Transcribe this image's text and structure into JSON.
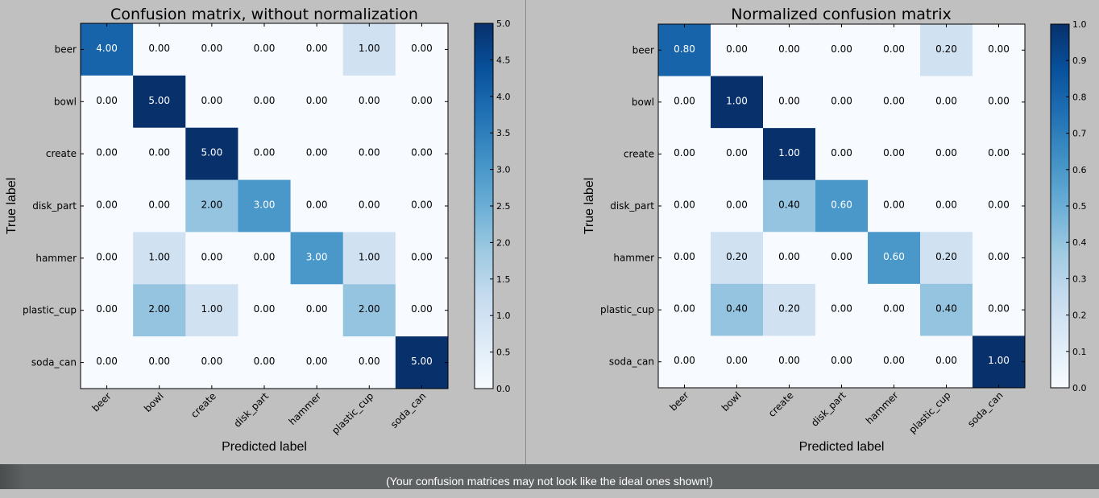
{
  "caption": "(Your confusion matrices may not look like the ideal ones shown!)",
  "colormap": {
    "low": "#f7fbff",
    "high": "#08306b"
  },
  "chart_data": [
    {
      "type": "heatmap",
      "title": "Confusion matrix, without normalization",
      "xlabel": "Predicted label",
      "ylabel": "True label",
      "x_categories": [
        "beer",
        "bowl",
        "create",
        "disk_part",
        "hammer",
        "plastic_cup",
        "soda_can"
      ],
      "y_categories": [
        "beer",
        "bowl",
        "create",
        "disk_part",
        "hammer",
        "plastic_cup",
        "soda_can"
      ],
      "values": [
        [
          4,
          0,
          0,
          0,
          0,
          1,
          0
        ],
        [
          0,
          5,
          0,
          0,
          0,
          0,
          0
        ],
        [
          0,
          0,
          5,
          0,
          0,
          0,
          0
        ],
        [
          0,
          0,
          2,
          3,
          0,
          0,
          0
        ],
        [
          0,
          1,
          0,
          0,
          3,
          1,
          0
        ],
        [
          0,
          2,
          1,
          0,
          0,
          2,
          0
        ],
        [
          0,
          0,
          0,
          0,
          0,
          0,
          5
        ]
      ],
      "cell_labels": [
        [
          "4.00",
          "0.00",
          "0.00",
          "0.00",
          "0.00",
          "1.00",
          "0.00"
        ],
        [
          "0.00",
          "5.00",
          "0.00",
          "0.00",
          "0.00",
          "0.00",
          "0.00"
        ],
        [
          "0.00",
          "0.00",
          "5.00",
          "0.00",
          "0.00",
          "0.00",
          "0.00"
        ],
        [
          "0.00",
          "0.00",
          "2.00",
          "3.00",
          "0.00",
          "0.00",
          "0.00"
        ],
        [
          "0.00",
          "1.00",
          "0.00",
          "0.00",
          "3.00",
          "1.00",
          "0.00"
        ],
        [
          "0.00",
          "2.00",
          "1.00",
          "0.00",
          "0.00",
          "2.00",
          "0.00"
        ],
        [
          "0.00",
          "0.00",
          "0.00",
          "0.00",
          "0.00",
          "0.00",
          "5.00"
        ]
      ],
      "value_range": [
        0,
        5
      ],
      "colorbar_ticks": [
        "0.0",
        "0.5",
        "1.0",
        "1.5",
        "2.0",
        "2.5",
        "3.0",
        "3.5",
        "4.0",
        "4.5",
        "5.0"
      ]
    },
    {
      "type": "heatmap",
      "title": "Normalized confusion matrix",
      "xlabel": "Predicted label",
      "ylabel": "True label",
      "x_categories": [
        "beer",
        "bowl",
        "create",
        "disk_part",
        "hammer",
        "plastic_cup",
        "soda_can"
      ],
      "y_categories": [
        "beer",
        "bowl",
        "create",
        "disk_part",
        "hammer",
        "plastic_cup",
        "soda_can"
      ],
      "values": [
        [
          0.8,
          0,
          0,
          0,
          0,
          0.2,
          0
        ],
        [
          0,
          1,
          0,
          0,
          0,
          0,
          0
        ],
        [
          0,
          0,
          1,
          0,
          0,
          0,
          0
        ],
        [
          0,
          0,
          0.4,
          0.6,
          0,
          0,
          0
        ],
        [
          0,
          0.2,
          0,
          0,
          0.6,
          0.2,
          0
        ],
        [
          0,
          0.4,
          0.2,
          0,
          0,
          0.4,
          0
        ],
        [
          0,
          0,
          0,
          0,
          0,
          0,
          1
        ]
      ],
      "cell_labels": [
        [
          "0.80",
          "0.00",
          "0.00",
          "0.00",
          "0.00",
          "0.20",
          "0.00"
        ],
        [
          "0.00",
          "1.00",
          "0.00",
          "0.00",
          "0.00",
          "0.00",
          "0.00"
        ],
        [
          "0.00",
          "0.00",
          "1.00",
          "0.00",
          "0.00",
          "0.00",
          "0.00"
        ],
        [
          "0.00",
          "0.00",
          "0.40",
          "0.60",
          "0.00",
          "0.00",
          "0.00"
        ],
        [
          "0.00",
          "0.20",
          "0.00",
          "0.00",
          "0.60",
          "0.20",
          "0.00"
        ],
        [
          "0.00",
          "0.40",
          "0.20",
          "0.00",
          "0.00",
          "0.40",
          "0.00"
        ],
        [
          "0.00",
          "0.00",
          "0.00",
          "0.00",
          "0.00",
          "0.00",
          "1.00"
        ]
      ],
      "value_range": [
        0,
        1
      ],
      "colorbar_ticks": [
        "0.0",
        "0.1",
        "0.2",
        "0.3",
        "0.4",
        "0.5",
        "0.6",
        "0.7",
        "0.8",
        "0.9",
        "1.0"
      ]
    }
  ]
}
